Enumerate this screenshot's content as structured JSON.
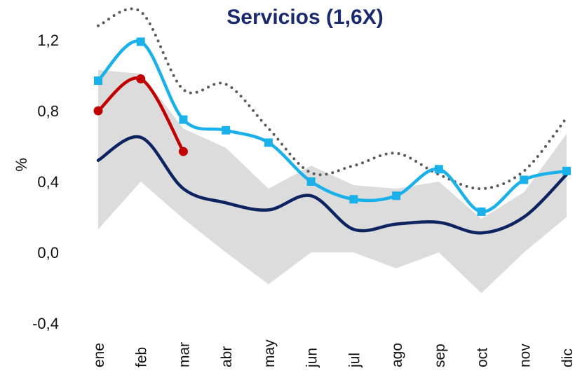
{
  "chart_data": {
    "type": "line",
    "title": "Servicios (1,6X)",
    "y_label": "%",
    "categories": [
      "ene",
      "feb",
      "mar",
      "abr",
      "may",
      "jun",
      "jul",
      "ago",
      "sep",
      "oct",
      "nov",
      "dic"
    ],
    "ylim": [
      -0.4,
      1.2
    ],
    "yticks": [
      {
        "value": -0.4,
        "label": "-0,4"
      },
      {
        "value": 0,
        "label": "0,0"
      },
      {
        "value": 0.4,
        "label": "0,4"
      },
      {
        "value": 0.8,
        "label": "0,8"
      },
      {
        "value": 1.2,
        "label": "1,2"
      }
    ],
    "band": {
      "color": "#dcdcdc",
      "upper": [
        1.03,
        1.01,
        0.7,
        0.59,
        0.36,
        0.49,
        0.38,
        0.36,
        0.4,
        0.19,
        0.34,
        0.67
      ],
      "lower": [
        0.13,
        0.4,
        0.19,
        0.0,
        -0.18,
        0.0,
        0.0,
        -0.09,
        0.0,
        -0.23,
        0.0,
        0.2
      ]
    },
    "series": [
      {
        "color": "#5a5a5a",
        "style": "dotted",
        "values": [
          1.28,
          1.36,
          0.92,
          0.95,
          0.7,
          0.45,
          0.49,
          0.56,
          0.44,
          0.36,
          0.46,
          0.76
        ]
      },
      {
        "color": "#0d2461",
        "style": "solid",
        "values": [
          0.52,
          0.65,
          0.36,
          0.28,
          0.24,
          0.32,
          0.13,
          0.16,
          0.17,
          0.11,
          0.2,
          0.44
        ]
      },
      {
        "color": "#1ab0ea",
        "style": "solid",
        "marker": "square",
        "values": [
          0.97,
          1.19,
          0.75,
          0.69,
          0.62,
          0.4,
          0.3,
          0.32,
          0.47,
          0.23,
          0.41,
          0.46
        ]
      },
      {
        "color": "#c00000",
        "style": "solid",
        "marker": "circle",
        "values": [
          0.8,
          0.98,
          0.57,
          null,
          null,
          null,
          null,
          null,
          null,
          null,
          null,
          null
        ]
      }
    ]
  }
}
